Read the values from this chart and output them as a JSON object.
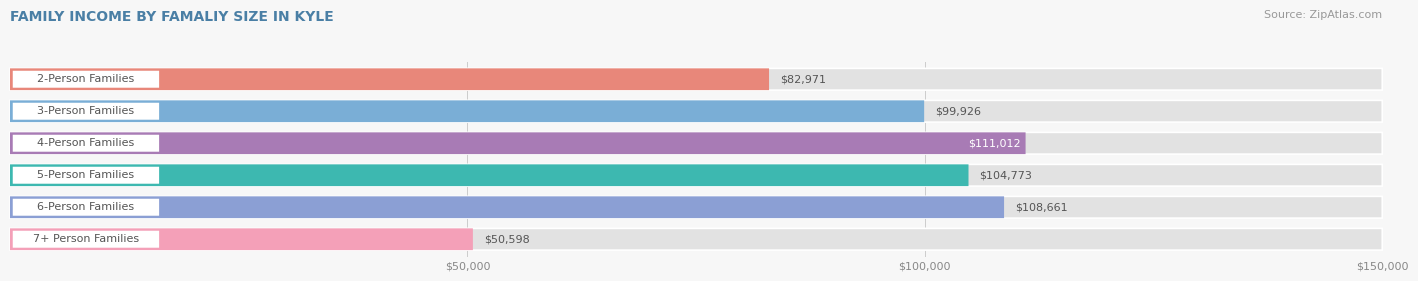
{
  "title": "FAMILY INCOME BY FAMALIY SIZE IN KYLE",
  "source": "Source: ZipAtlas.com",
  "categories": [
    "2-Person Families",
    "3-Person Families",
    "4-Person Families",
    "5-Person Families",
    "6-Person Families",
    "7+ Person Families"
  ],
  "values": [
    82971,
    99926,
    111012,
    104773,
    108661,
    50598
  ],
  "bar_colors": [
    "#E8877A",
    "#7aaed6",
    "#a87bb5",
    "#3db8b0",
    "#8b9fd4",
    "#f4a0b8"
  ],
  "value_label_inside": [
    false,
    false,
    true,
    false,
    false,
    false
  ],
  "xlim_max": 150000,
  "xtick_labels": [
    "$50,000",
    "$100,000",
    "$150,000"
  ],
  "xtick_values": [
    50000,
    100000,
    150000
  ],
  "title_fontsize": 10,
  "source_fontsize": 8,
  "bar_label_fontsize": 8,
  "category_fontsize": 8,
  "background_color": "#f7f7f7",
  "bar_background_color": "#e2e2e2",
  "title_color": "#4a7fa5",
  "value_text_color_outside": "#555555",
  "value_text_color_inside": "#ffffff",
  "category_text_color": "#555555",
  "bar_height": 0.68,
  "bar_gap": 1.0
}
